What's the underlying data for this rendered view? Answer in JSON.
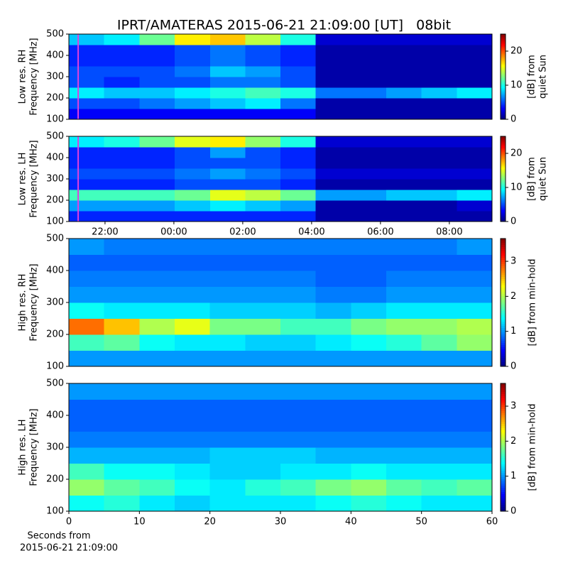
{
  "chart_data": [
    {
      "type": "heatmap",
      "title": "IPRT/AMATERAS 2015-06-21 21:09:00 [UT]   08bit",
      "ylabel": [
        "Low res. RH",
        "Frequency [MHz]"
      ],
      "colorbar_label": [
        "[dB] from",
        "quiet Sun"
      ],
      "xlim": [
        20.95,
        33.24
      ],
      "ylim": [
        100,
        500
      ],
      "yticks": [
        100,
        200,
        300,
        400,
        500
      ],
      "clim": [
        0,
        25
      ],
      "cticks": [
        0,
        10,
        20
      ],
      "cursor_x": 21.22,
      "x_bins": [
        20.95,
        21.97,
        23.0,
        24.02,
        25.05,
        26.07,
        27.1,
        28.12,
        29.15,
        30.17,
        31.19,
        32.22,
        33.24
      ],
      "y_bins": [
        100,
        150,
        200,
        250,
        300,
        350,
        400,
        450,
        500
      ],
      "z": [
        [
          3,
          3,
          3,
          3,
          3,
          3,
          3,
          1,
          1,
          1,
          1,
          1
        ],
        [
          5,
          5,
          6,
          7,
          8,
          9,
          6,
          1,
          1,
          1,
          1,
          1
        ],
        [
          9,
          8,
          8,
          9,
          10,
          11,
          10,
          6,
          6,
          7,
          8,
          9
        ],
        [
          5,
          4,
          5,
          5,
          6,
          6,
          5,
          1,
          1,
          1,
          1,
          1
        ],
        [
          5,
          5,
          5,
          6,
          8,
          7,
          5,
          1,
          1,
          1,
          1,
          1
        ],
        [
          4,
          4,
          4,
          5,
          6,
          5,
          4,
          1,
          1,
          1,
          1,
          1
        ],
        [
          4,
          4,
          4,
          5,
          6,
          5,
          4,
          1,
          1,
          1,
          1,
          1
        ],
        [
          8,
          9,
          12,
          16,
          17,
          14,
          10,
          2,
          2,
          2,
          2,
          2
        ]
      ]
    },
    {
      "type": "heatmap",
      "ylabel": [
        "Low res. LH",
        "Frequency [MHz]"
      ],
      "colorbar_label": [
        "[dB] from",
        "quiet Sun"
      ],
      "xlim": [
        20.95,
        33.24
      ],
      "ylim": [
        100,
        500
      ],
      "yticks": [
        100,
        200,
        300,
        400,
        500
      ],
      "xticks": [
        {
          "value": 22,
          "label": "22:00"
        },
        {
          "value": 24,
          "label": "00:00"
        },
        {
          "value": 26,
          "label": "02:00"
        },
        {
          "value": 28,
          "label": "04:00"
        },
        {
          "value": 30,
          "label": "06:00"
        },
        {
          "value": 32,
          "label": "08:00"
        }
      ],
      "clim": [
        0,
        25
      ],
      "cticks": [
        0,
        10,
        20
      ],
      "cursor_x": 21.22,
      "x_bins": [
        20.95,
        21.97,
        23.0,
        24.02,
        25.05,
        26.07,
        27.1,
        28.12,
        29.15,
        30.17,
        31.19,
        32.22,
        33.24
      ],
      "y_bins": [
        100,
        150,
        200,
        250,
        300,
        350,
        400,
        450,
        500
      ],
      "z": [
        [
          4,
          4,
          4,
          4,
          4,
          4,
          4,
          1,
          1,
          1,
          1,
          1
        ],
        [
          7,
          7,
          7,
          8,
          9,
          8,
          7,
          1,
          1,
          1,
          1,
          2
        ],
        [
          11,
          11,
          11,
          12,
          15,
          14,
          12,
          7,
          7,
          8,
          8,
          9
        ],
        [
          4,
          4,
          4,
          5,
          5,
          5,
          4,
          1,
          1,
          1,
          1,
          1
        ],
        [
          5,
          5,
          5,
          6,
          7,
          6,
          5,
          2,
          2,
          2,
          2,
          2
        ],
        [
          4,
          4,
          4,
          5,
          5,
          5,
          4,
          1,
          1,
          1,
          1,
          1
        ],
        [
          4,
          4,
          4,
          5,
          7,
          5,
          4,
          1,
          1,
          1,
          1,
          1
        ],
        [
          9,
          10,
          12,
          15,
          16,
          13,
          10,
          2,
          2,
          2,
          2,
          2
        ]
      ]
    },
    {
      "type": "heatmap",
      "ylabel": [
        "High res. RH",
        "Frequency [MHz]"
      ],
      "colorbar_label": [
        "[dB] from min-hold"
      ],
      "xlim": [
        0,
        60
      ],
      "ylim": [
        100,
        500
      ],
      "yticks": [
        100,
        200,
        300,
        400,
        500
      ],
      "clim": [
        0,
        3.65
      ],
      "cticks": [
        0,
        1,
        2,
        3
      ],
      "x_bins": [
        0,
        5,
        10,
        15,
        20,
        25,
        30,
        35,
        40,
        45,
        50,
        55,
        60
      ],
      "y_bins": [
        100,
        150,
        200,
        250,
        300,
        350,
        400,
        450,
        500
      ],
      "z": [
        [
          1.0,
          1.0,
          1.0,
          1.0,
          1.0,
          1.0,
          1.0,
          1.0,
          1.0,
          1.0,
          1.0,
          1.0
        ],
        [
          1.6,
          1.7,
          1.4,
          1.3,
          1.3,
          1.2,
          1.2,
          1.3,
          1.4,
          1.5,
          1.7,
          1.9
        ],
        [
          2.8,
          2.5,
          2.0,
          2.2,
          1.8,
          1.8,
          1.6,
          1.6,
          1.8,
          1.9,
          1.9,
          2.0
        ],
        [
          1.4,
          1.3,
          1.3,
          1.3,
          1.2,
          1.2,
          1.2,
          1.1,
          1.2,
          1.3,
          1.3,
          1.3
        ],
        [
          1.0,
          1.0,
          1.0,
          1.0,
          1.0,
          1.0,
          1.0,
          0.9,
          0.9,
          1.0,
          1.0,
          1.0
        ],
        [
          0.9,
          0.9,
          0.9,
          0.9,
          0.9,
          0.9,
          0.9,
          0.8,
          0.8,
          0.9,
          0.9,
          0.9
        ],
        [
          0.8,
          0.8,
          0.8,
          0.8,
          0.8,
          0.8,
          0.8,
          0.8,
          0.8,
          0.8,
          0.8,
          0.8
        ],
        [
          1.0,
          0.9,
          0.9,
          0.9,
          0.9,
          0.9,
          0.9,
          0.9,
          0.9,
          0.9,
          0.9,
          1.0
        ]
      ]
    },
    {
      "type": "heatmap",
      "ylabel": [
        "High res. LH",
        "Frequency [MHz]"
      ],
      "colorbar_label": [
        "[dB] from min-hold"
      ],
      "xlabel": [
        "Seconds from",
        "2015-06-21 21:09:00"
      ],
      "xlim": [
        0,
        60
      ],
      "ylim": [
        100,
        500
      ],
      "yticks": [
        100,
        200,
        300,
        400,
        500
      ],
      "xticks": [
        0,
        10,
        20,
        30,
        40,
        50,
        60
      ],
      "clim": [
        0,
        3.65
      ],
      "cticks": [
        0,
        1,
        2,
        3
      ],
      "x_bins": [
        0,
        5,
        10,
        15,
        20,
        25,
        30,
        35,
        40,
        45,
        50,
        55,
        60
      ],
      "y_bins": [
        100,
        150,
        200,
        250,
        300,
        350,
        400,
        450,
        500
      ],
      "z": [
        [
          1.4,
          1.5,
          1.3,
          1.2,
          1.3,
          1.3,
          1.3,
          1.4,
          1.5,
          1.4,
          1.3,
          1.3
        ],
        [
          1.9,
          1.7,
          1.6,
          1.4,
          1.3,
          1.5,
          1.6,
          1.8,
          1.9,
          1.7,
          1.6,
          1.7
        ],
        [
          1.6,
          1.4,
          1.4,
          1.3,
          1.2,
          1.2,
          1.3,
          1.3,
          1.4,
          1.3,
          1.3,
          1.3
        ],
        [
          1.1,
          1.1,
          1.1,
          1.1,
          1.2,
          1.2,
          1.2,
          1.1,
          1.1,
          1.1,
          1.1,
          1.1
        ],
        [
          0.9,
          0.9,
          0.9,
          0.9,
          0.9,
          0.9,
          0.9,
          0.9,
          0.9,
          0.9,
          0.9,
          0.9
        ],
        [
          0.8,
          0.8,
          0.8,
          0.8,
          0.8,
          0.8,
          0.8,
          0.8,
          0.8,
          0.8,
          0.8,
          0.8
        ],
        [
          0.8,
          0.8,
          0.8,
          0.8,
          0.8,
          0.8,
          0.8,
          0.8,
          0.8,
          0.8,
          0.8,
          0.8
        ],
        [
          1.0,
          1.0,
          1.0,
          1.0,
          1.0,
          1.0,
          1.0,
          1.0,
          1.0,
          1.0,
          1.0,
          1.0
        ]
      ]
    }
  ]
}
